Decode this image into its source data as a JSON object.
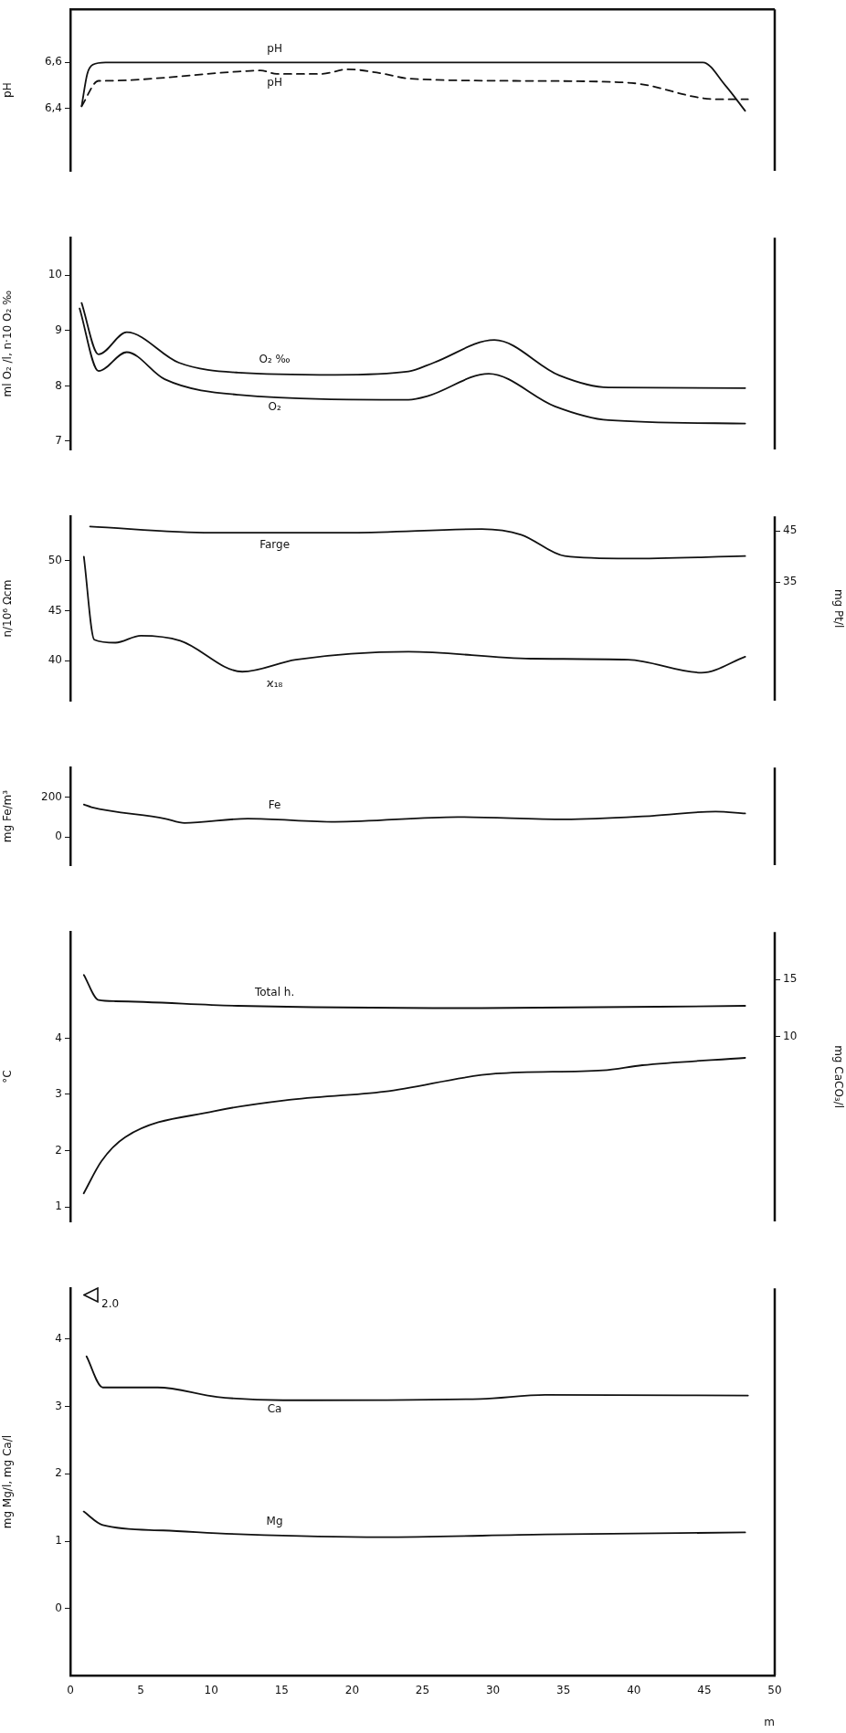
{
  "chart_data": [
    {
      "type": "line",
      "ylabel": "pH",
      "xlim": [
        0,
        50
      ],
      "xticks": [
        0,
        5,
        10,
        15,
        20,
        25,
        30,
        35,
        40,
        45,
        50
      ],
      "ylim": [
        6.13,
        6.83
      ],
      "yticks": [
        {
          "value": 6.4,
          "label": "6,4"
        },
        {
          "value": 6.6,
          "label": "6,6"
        }
      ],
      "tick_labels": "y",
      "grid": false,
      "legend": false,
      "marker": "none",
      "series": [
        {
          "name": "pH",
          "color": "#111111",
          "line_style": "solid",
          "x": [
            0.8,
            1.2,
            1.6,
            2.5,
            10,
            20,
            30,
            40,
            44.9,
            46.5,
            47.9
          ],
          "values": [
            6.41,
            6.55,
            6.59,
            6.6,
            6.6,
            6.6,
            6.6,
            6.6,
            6.6,
            6.5,
            6.39
          ]
        },
        {
          "name": "pH",
          "color": "#111111",
          "line_style": "dashed",
          "x": [
            0.8,
            2.0,
            2.2,
            11.9,
            13.5,
            14.65,
            17.8,
            19.7,
            22.3,
            24,
            31.6,
            38.6,
            40.6,
            44.4,
            45.8,
            48.1
          ],
          "values": [
            6.41,
            6.52,
            6.52,
            6.56,
            6.565,
            6.55,
            6.55,
            6.57,
            6.55,
            6.53,
            6.52,
            6.515,
            6.505,
            6.45,
            6.44,
            6.44
          ]
        }
      ]
    },
    {
      "type": "line",
      "ylabel": "ml O₂ /l, n·10 O₂ ‰",
      "xlim": [
        0,
        50
      ],
      "xticks": [
        0,
        5,
        10,
        15,
        20,
        25,
        30,
        35,
        40,
        45,
        50
      ],
      "ylim": [
        6.85,
        10.68
      ],
      "yticks": [
        7,
        8,
        9,
        10
      ],
      "tick_labels": "y",
      "grid": false,
      "legend": false,
      "marker": "none",
      "series": [
        {
          "name": "O₂ ‰",
          "color": "#111111",
          "x": [
            0.8,
            2.0,
            4.0,
            7.7,
            11.9,
            18.8,
            24,
            25.8,
            30.1,
            34.7,
            38.2,
            47.9
          ],
          "values": [
            9.5,
            8.57,
            8.97,
            8.42,
            8.24,
            8.2,
            8.26,
            8.42,
            8.83,
            8.19,
            7.97,
            7.96
          ]
        },
        {
          "name": "O₂",
          "color": "#111111",
          "x": [
            0.66,
            2.0,
            4.0,
            6.7,
            11.9,
            24,
            25.4,
            29.7,
            34.4,
            38.2,
            47.9
          ],
          "values": [
            9.4,
            8.27,
            8.61,
            8.12,
            7.84,
            7.75,
            7.82,
            8.22,
            7.63,
            7.38,
            7.32
          ]
        }
      ]
    },
    {
      "type": "line",
      "ylabel": "n/10⁶ Ωcm",
      "y2label": "mg Pt/l",
      "xlim": [
        0,
        50
      ],
      "xticks": [
        0,
        5,
        10,
        15,
        20,
        25,
        30,
        35,
        40,
        45,
        50
      ],
      "ylim": [
        36,
        54.43
      ],
      "yticks": [
        40,
        45,
        50
      ],
      "y2lim": [
        11.7,
        47.9
      ],
      "y2ticks": [
        35,
        45
      ],
      "tick_labels": "y",
      "grid": false,
      "legend": false,
      "marker": "none",
      "series": [
        {
          "name": "Farge",
          "color": "#111111",
          "axis": "y2",
          "x": [
            1.4,
            10,
            20,
            29.2,
            32,
            35.1,
            39.6,
            47.9
          ],
          "values": [
            45.9,
            44.7,
            44.7,
            45.4,
            44.3,
            40.1,
            39.6,
            40.1
          ]
        },
        {
          "name": "ϰ₁₈",
          "color": "#111111",
          "x": [
            0.96,
            1.7,
            3.2,
            5.0,
            7.8,
            12.2,
            16,
            24,
            32.7,
            39.6,
            44.8,
            47.9
          ],
          "values": [
            50.4,
            42.1,
            41.8,
            42.5,
            42.0,
            38.9,
            40.1,
            40.9,
            40.2,
            40.1,
            38.8,
            40.4
          ]
        }
      ]
    },
    {
      "type": "line",
      "ylabel": "mg Fe/m³",
      "xlim": [
        0,
        50
      ],
      "xticks": [
        0,
        5,
        10,
        15,
        20,
        25,
        30,
        35,
        40,
        45,
        50
      ],
      "ylim": [
        -142,
        351
      ],
      "yticks": [
        0,
        200
      ],
      "tick_labels": "y",
      "grid": false,
      "legend": false,
      "marker": "none",
      "series": [
        {
          "name": "Fe",
          "color": "#111111",
          "x": [
            0.96,
            1.5,
            6.7,
            8.1,
            12.6,
            18.8,
            27.5,
            35.1,
            41.3,
            45.8,
            47.9
          ],
          "values": [
            164,
            151,
            93,
            71,
            93,
            77,
            101,
            89,
            107,
            129,
            119
          ]
        }
      ]
    },
    {
      "type": "line",
      "ylabel": "°C",
      "y2label": "mg CaCO₃/l",
      "xlim": [
        0,
        50
      ],
      "xticks": [
        0,
        5,
        10,
        15,
        20,
        25,
        30,
        35,
        40,
        45,
        50
      ],
      "ylim": [
        0.74,
        5.89
      ],
      "yticks": [
        1,
        2,
        3,
        4
      ],
      "y2lim": [
        -6.17,
        19.16
      ],
      "y2ticks": [
        10,
        15
      ],
      "tick_labels": "y",
      "grid": false,
      "legend": false,
      "marker": "none",
      "series": [
        {
          "name": "Total h.",
          "color": "#111111",
          "axis": "y2",
          "x": [
            0.96,
            2.0,
            3.2,
            11.9,
            29.2,
            47.9
          ],
          "values": [
            15.4,
            13.2,
            13.1,
            12.7,
            12.5,
            12.7
          ]
        },
        {
          "color": "#111111",
          "x": [
            0.95,
            2.2,
            3.9,
            10.2,
            15.4,
            22.3,
            30.2,
            37.8,
            40.6,
            47.9
          ],
          "values": [
            1.24,
            1.81,
            2.24,
            2.7,
            2.9,
            3.05,
            3.37,
            3.43,
            3.52,
            3.65
          ]
        }
      ]
    },
    {
      "type": "line",
      "ylabel": "mg Mg/l, mg Ca/l",
      "xlabel": "m",
      "xlim": [
        0,
        50
      ],
      "xticks": [
        0,
        5,
        10,
        15,
        20,
        25,
        30,
        35,
        40,
        45,
        50
      ],
      "ylim": [
        -0.99,
        4.75
      ],
      "yticks": [
        0,
        1,
        2,
        3,
        4
      ],
      "grid": false,
      "legend": false,
      "marker": "none",
      "annotations": [
        "2.0"
      ],
      "series": [
        {
          "name": "Mg",
          "color": "#111111",
          "x": [
            0.95,
            2.3,
            6.6,
            12.4,
            22.1,
            33.7,
            47.9
          ],
          "values": [
            1.44,
            1.24,
            1.16,
            1.1,
            1.06,
            1.1,
            1.13
          ]
        },
        {
          "name": "Ca",
          "color": "#111111",
          "x": [
            1.15,
            2.3,
            6.2,
            10.4,
            15.1,
            29.1,
            33.7,
            48.1
          ],
          "values": [
            3.74,
            3.28,
            3.28,
            3.14,
            3.09,
            3.11,
            3.17,
            3.16
          ]
        }
      ]
    }
  ]
}
